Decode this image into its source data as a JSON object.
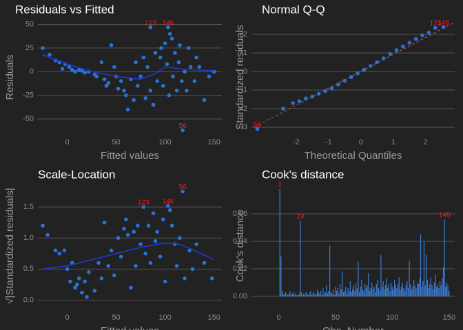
{
  "chart_data": [
    {
      "type": "scatter",
      "title": "Residuals vs Fitted",
      "xlabel": "Fitted values",
      "ylabel": "Residuals",
      "xlim": [
        -30,
        158
      ],
      "ylim": [
        -66,
        54
      ],
      "xticks": [
        0,
        50,
        100,
        150
      ],
      "yticks": [
        50,
        25,
        0,
        -25,
        -50
      ],
      "grid": "y",
      "color": "#2a72d6",
      "x": [
        -25,
        -18,
        -12,
        -8,
        -5,
        -2,
        2,
        5,
        8,
        12,
        15,
        18,
        22,
        28,
        30,
        35,
        38,
        40,
        42,
        45,
        48,
        50,
        52,
        55,
        58,
        60,
        62,
        65,
        68,
        70,
        72,
        75,
        78,
        80,
        82,
        85,
        85,
        88,
        90,
        92,
        95,
        96,
        98,
        100,
        102,
        103,
        104,
        105,
        107,
        108,
        110,
        112,
        114,
        115,
        117,
        118,
        120,
        122,
        124,
        126,
        130,
        132,
        135,
        140,
        145,
        150
      ],
      "y": [
        25,
        18,
        12,
        10,
        3,
        8,
        5,
        2,
        0,
        2,
        1,
        -1,
        0,
        -3,
        -5,
        10,
        -8,
        -15,
        -12,
        28,
        5,
        -5,
        -18,
        -10,
        -20,
        -25,
        -40,
        -8,
        -30,
        10,
        -15,
        -5,
        15,
        -28,
        5,
        -20,
        47,
        -35,
        20,
        -10,
        15,
        25,
        -15,
        30,
        8,
        47,
        -25,
        40,
        35,
        -5,
        20,
        -20,
        10,
        28,
        -10,
        -62,
        0,
        -20,
        25,
        5,
        -10,
        15,
        5,
        -30,
        -5,
        0
      ],
      "smooth": {
        "color": "#1a3ae0",
        "x": [
          -25,
          0,
          25,
          50,
          75,
          90,
          100,
          115,
          130,
          150
        ],
        "y": [
          18,
          8,
          0,
          -5,
          -8,
          -2,
          5,
          3,
          2,
          1
        ]
      },
      "annotations": [
        {
          "text": "123",
          "x": 85,
          "y": 47
        },
        {
          "text": "146",
          "x": 103,
          "y": 47
        },
        {
          "text": "56",
          "x": 118,
          "y": -62
        }
      ]
    },
    {
      "type": "scatter",
      "title": "Normal Q-Q",
      "xlabel": "Theoretical Quantiles",
      "ylabel": "Standardized residuals",
      "xlim": [
        -3.38,
        2.9
      ],
      "ylim": [
        -3.37,
        2.74
      ],
      "xticks": [
        -2,
        -1,
        0,
        1,
        2
      ],
      "yticks": [
        2,
        1,
        0,
        -1,
        -2,
        -3
      ],
      "grid": "y",
      "color": "#2a72d6",
      "x": [
        -3.2,
        -2.4,
        -2.1,
        -1.9,
        -1.7,
        -1.5,
        -1.3,
        -1.1,
        -0.9,
        -0.7,
        -0.5,
        -0.3,
        -0.1,
        0.1,
        0.3,
        0.5,
        0.7,
        0.9,
        1.1,
        1.3,
        1.5,
        1.7,
        1.9,
        2.1,
        2.3,
        2.55
      ],
      "y": [
        -3.1,
        -2.0,
        -1.7,
        -1.6,
        -1.45,
        -1.35,
        -1.2,
        -1.05,
        -0.9,
        -0.7,
        -0.5,
        -0.3,
        -0.1,
        0.1,
        0.3,
        0.5,
        0.7,
        0.95,
        1.15,
        1.35,
        1.55,
        1.75,
        1.95,
        2.1,
        2.35,
        2.4
      ],
      "reference_line": {
        "color": "#a0524a",
        "x": [
          -3.3,
          2.9
        ],
        "y": [
          -3.0,
          2.65
        ]
      },
      "annotations": [
        {
          "text": "56",
          "x": -3.2,
          "y": -3.1
        },
        {
          "text": "123",
          "x": 2.3,
          "y": 2.35
        },
        {
          "text": "146",
          "x": 2.55,
          "y": 2.4
        }
      ]
    },
    {
      "type": "scatter",
      "title": "Scale-Location",
      "xlabel": "Fitted values",
      "ylabel": "√|Standardized residuals|",
      "xlim": [
        -30,
        158
      ],
      "ylim": [
        -0.15,
        1.9
      ],
      "xticks": [
        0,
        50,
        100,
        150
      ],
      "yticks": [
        1.5,
        {
          "value": 1,
          "label": "1.0"
        },
        0.5,
        {
          "value": 0,
          "label": "0.0"
        }
      ],
      "grid": "y",
      "color": "#2a72d6",
      "x": [
        -25,
        -20,
        -12,
        -8,
        -3,
        0,
        3,
        5,
        8,
        10,
        12,
        15,
        18,
        20,
        22,
        28,
        32,
        35,
        38,
        42,
        45,
        48,
        52,
        55,
        58,
        60,
        62,
        65,
        68,
        70,
        72,
        75,
        78,
        80,
        83,
        85,
        88,
        90,
        92,
        95,
        98,
        100,
        103,
        105,
        107,
        110,
        112,
        115,
        118,
        120,
        125,
        128,
        132,
        140,
        148
      ],
      "y": [
        1.2,
        1.05,
        0.8,
        0.75,
        0.8,
        0.5,
        0.3,
        0.6,
        0.2,
        0.25,
        0.35,
        0.12,
        0.3,
        0.05,
        0.45,
        0.15,
        0.6,
        0.35,
        1.25,
        0.55,
        0.8,
        0.4,
        1.0,
        0.7,
        1.15,
        1.3,
        1.05,
        0.2,
        1.1,
        0.55,
        1.2,
        0.9,
        1.5,
        0.75,
        1.2,
        0.6,
        1.4,
        0.95,
        1.1,
        0.7,
        1.3,
        0.3,
        1.52,
        1.45,
        1.2,
        0.9,
        0.55,
        1.0,
        1.75,
        0.35,
        0.8,
        0.5,
        0.9,
        0.6,
        0.35
      ],
      "smooth": {
        "color": "#1a3ae0",
        "x": [
          -25,
          0,
          25,
          50,
          75,
          100,
          115,
          130,
          150
        ],
        "y": [
          0.5,
          0.55,
          0.65,
          0.75,
          0.85,
          0.92,
          0.9,
          0.8,
          0.65
        ]
      },
      "annotations": [
        {
          "text": "123",
          "x": 78,
          "y": 1.5
        },
        {
          "text": "146",
          "x": 103,
          "y": 1.52
        },
        {
          "text": "56",
          "x": 118,
          "y": 1.75
        }
      ]
    },
    {
      "type": "bar",
      "title": "Cook's distance",
      "xlabel": "Obs. Number",
      "ylabel": "Cook's distance",
      "xlim": [
        -24,
        155
      ],
      "ylim": [
        -0.0095,
        0.083
      ],
      "xticks": [
        0,
        50,
        100,
        150
      ],
      "yticks": [
        {
          "value": 0.06,
          "label": "0.06"
        },
        {
          "value": 0.04,
          "label": "0.04"
        },
        {
          "value": 0.02,
          "label": "0.02"
        },
        {
          "value": 0,
          "label": "0.00"
        }
      ],
      "grid": "y",
      "color": "#3a7fd8",
      "x": [
        1,
        2,
        3,
        4,
        5,
        6,
        7,
        8,
        9,
        10,
        11,
        12,
        13,
        14,
        15,
        16,
        17,
        18,
        19,
        20,
        21,
        22,
        23,
        24,
        25,
        26,
        27,
        28,
        29,
        30,
        31,
        32,
        33,
        34,
        35,
        36,
        37,
        38,
        39,
        40,
        41,
        42,
        43,
        44,
        45,
        46,
        47,
        48,
        49,
        50,
        51,
        52,
        53,
        54,
        55,
        56,
        57,
        58,
        59,
        60,
        61,
        62,
        63,
        64,
        65,
        66,
        67,
        68,
        69,
        70,
        71,
        72,
        73,
        74,
        75,
        76,
        77,
        78,
        79,
        80,
        81,
        82,
        83,
        84,
        85,
        86,
        87,
        88,
        89,
        90,
        91,
        92,
        93,
        94,
        95,
        96,
        97,
        98,
        99,
        100,
        101,
        102,
        103,
        104,
        105,
        106,
        107,
        108,
        109,
        110,
        111,
        112,
        113,
        114,
        115,
        116,
        117,
        118,
        119,
        120,
        121,
        122,
        123,
        124,
        125,
        126,
        127,
        128,
        129,
        130,
        131,
        132,
        133,
        134,
        135,
        136,
        137,
        138,
        139,
        140,
        141,
        142,
        143,
        144,
        145,
        146,
        147,
        148,
        149,
        150
      ],
      "values": [
        0.078,
        0.029,
        0.004,
        0.002,
        0.001,
        0.003,
        0.002,
        0.001,
        0.002,
        0.004,
        0.001,
        0.002,
        0.003,
        0.001,
        0.002,
        0.001,
        0.001,
        0.002,
        0.055,
        0.003,
        0.001,
        0.002,
        0.001,
        0.003,
        0.002,
        0.001,
        0.002,
        0.004,
        0.001,
        0.002,
        0.003,
        0.001,
        0.002,
        0.005,
        0.003,
        0.002,
        0.004,
        0.001,
        0.006,
        0.002,
        0.003,
        0.008,
        0.002,
        0.004,
        0.037,
        0.003,
        0.002,
        0.005,
        0.001,
        0.007,
        0.004,
        0.006,
        0.002,
        0.009,
        0.005,
        0.018,
        0.003,
        0.004,
        0.007,
        0.002,
        0.006,
        0.004,
        0.011,
        0.003,
        0.005,
        0.008,
        0.004,
        0.01,
        0.006,
        0.025,
        0.003,
        0.007,
        0.012,
        0.005,
        0.004,
        0.009,
        0.006,
        0.008,
        0.017,
        0.004,
        0.006,
        0.01,
        0.005,
        0.007,
        0.003,
        0.009,
        0.012,
        0.006,
        0.004,
        0.03,
        0.007,
        0.011,
        0.005,
        0.008,
        0.013,
        0.006,
        0.009,
        0.004,
        0.01,
        0.007,
        0.005,
        0.012,
        0.008,
        0.006,
        0.009,
        0.014,
        0.005,
        0.007,
        0.01,
        0.006,
        0.004,
        0.008,
        0.011,
        0.006,
        0.026,
        0.009,
        0.005,
        0.007,
        0.012,
        0.008,
        0.006,
        0.01,
        0.009,
        0.013,
        0.045,
        0.007,
        0.011,
        0.04,
        0.008,
        0.03,
        0.012,
        0.006,
        0.009,
        0.014,
        0.008,
        0.005,
        0.01,
        0.016,
        0.007,
        0.009,
        0.006,
        0.011,
        0.008,
        0.013,
        0.021,
        0.056,
        0.007,
        0.01,
        0.008,
        0.004
      ],
      "annotations": [
        {
          "text": "1",
          "x": 1,
          "y": 0.078
        },
        {
          "text": "19",
          "x": 19,
          "y": 0.055
        },
        {
          "text": "146",
          "x": 146,
          "y": 0.056
        }
      ]
    }
  ]
}
